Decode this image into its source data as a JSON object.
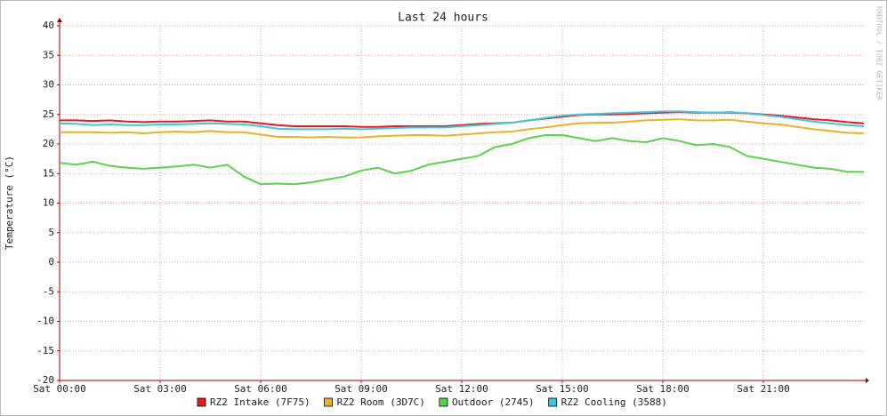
{
  "chart_data": {
    "type": "line",
    "title": "Last 24 hours",
    "y_label": "Temperature (°C)",
    "watermark": "RRDTOOL / TOBI OETIKER",
    "x": [
      0,
      0.5,
      1,
      1.5,
      2,
      2.5,
      3,
      3.5,
      4,
      4.5,
      5,
      5.5,
      6,
      6.5,
      7,
      7.5,
      8,
      8.5,
      9,
      9.5,
      10,
      10.5,
      11,
      11.5,
      12,
      12.5,
      13,
      13.5,
      14,
      14.5,
      15,
      15.5,
      16,
      16.5,
      17,
      17.5,
      18,
      18.5,
      19,
      19.5,
      20,
      20.5,
      21,
      21.5,
      22,
      22.5,
      23,
      23.5,
      24
    ],
    "xlim": [
      0,
      24
    ],
    "xticks": [
      {
        "value": 0,
        "label": "Sat 00:00"
      },
      {
        "value": 3,
        "label": "Sat 03:00"
      },
      {
        "value": 6,
        "label": "Sat 06:00"
      },
      {
        "value": 9,
        "label": "Sat 09:00"
      },
      {
        "value": 12,
        "label": "Sat 12:00"
      },
      {
        "value": 15,
        "label": "Sat 15:00"
      },
      {
        "value": 18,
        "label": "Sat 18:00"
      },
      {
        "value": 21,
        "label": "Sat 21:00"
      }
    ],
    "ylim": [
      -20,
      40
    ],
    "yticks": [
      -20,
      -15,
      -10,
      -5,
      0,
      5,
      10,
      15,
      20,
      25,
      30,
      35,
      40
    ],
    "grid": true,
    "series": [
      {
        "name": "RZ2 Intake (7F75)",
        "color": "#e41a1c",
        "values": [
          24,
          24,
          23.9,
          24,
          23.8,
          23.7,
          23.8,
          23.8,
          23.9,
          24,
          23.8,
          23.8,
          23.5,
          23.2,
          23,
          23,
          23,
          23,
          22.9,
          22.9,
          23,
          23,
          23,
          23,
          23.2,
          23.4,
          23.5,
          23.6,
          24,
          24.3,
          24.6,
          24.9,
          25,
          25,
          25.1,
          25.2,
          25.3,
          25.4,
          25.3,
          25.3,
          25.3,
          25.2,
          25,
          24.8,
          24.5,
          24.2,
          24,
          23.7,
          23.5
        ]
      },
      {
        "name": "RZ2 Room (3D7C)",
        "color": "#e8b32a",
        "values": [
          22,
          22,
          22,
          21.9,
          22,
          21.8,
          22,
          22.1,
          22,
          22.2,
          22,
          22,
          21.6,
          21.2,
          21.2,
          21.1,
          21.2,
          21.1,
          21.1,
          21.3,
          21.4,
          21.5,
          21.5,
          21.4,
          21.6,
          21.8,
          22,
          22.1,
          22.5,
          22.8,
          23.2,
          23.5,
          23.6,
          23.6,
          23.8,
          24,
          24.1,
          24.2,
          24,
          24,
          24.1,
          23.8,
          23.5,
          23.3,
          22.9,
          22.5,
          22.2,
          21.9,
          21.8
        ]
      },
      {
        "name": "Outdoor (2745)",
        "color": "#5ad34a",
        "values": [
          16.8,
          16.5,
          17,
          16.3,
          16,
          15.8,
          16,
          16.2,
          16.5,
          16,
          16.5,
          14.5,
          13.2,
          13.3,
          13.2,
          13.5,
          14,
          14.5,
          15.5,
          16,
          15,
          15.5,
          16.5,
          17,
          17.5,
          18,
          19.5,
          20,
          21,
          21.5,
          21.5,
          21,
          20.5,
          21,
          20.5,
          20.3,
          21,
          20.5,
          19.8,
          20,
          19.5,
          18,
          17.5,
          17,
          16.5,
          16,
          15.8,
          15.3,
          15.3
        ]
      },
      {
        "name": "RZ2 Cooling (3588)",
        "color": "#3fc6e0",
        "values": [
          23.5,
          23.4,
          23.2,
          23.3,
          23.2,
          23.2,
          23.3,
          23.3,
          23.4,
          23.5,
          23.4,
          23.3,
          23,
          22.6,
          22.5,
          22.5,
          22.5,
          22.6,
          22.5,
          22.6,
          22.7,
          22.8,
          22.8,
          22.8,
          23,
          23.2,
          23.4,
          23.6,
          24,
          24.4,
          24.8,
          25,
          25.1,
          25.2,
          25.3,
          25.4,
          25.5,
          25.5,
          25.4,
          25.3,
          25.4,
          25.2,
          24.9,
          24.6,
          24.2,
          23.8,
          23.5,
          23.2,
          23
        ]
      }
    ]
  }
}
